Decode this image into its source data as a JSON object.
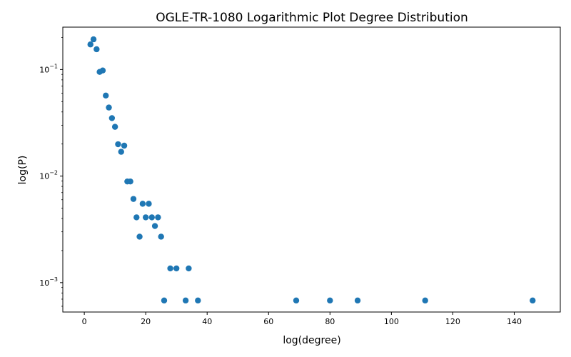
{
  "chart_data": {
    "type": "scatter",
    "title": "OGLE-TR-1080 Logarithmic Plot Degree Distribution",
    "xlabel": "log(degree)",
    "ylabel": "log(P)",
    "xlim": [
      -7,
      155
    ],
    "ylim": [
      0.00053,
      0.25
    ],
    "yscale": "log",
    "grid": false,
    "color": "#1f77b4",
    "x_ticks": [
      0,
      20,
      40,
      60,
      80,
      100,
      120,
      140
    ],
    "x_tick_labels": [
      "0",
      "20",
      "40",
      "60",
      "80",
      "100",
      "120",
      "140"
    ],
    "y_ticks": [
      0.001,
      0.01,
      0.1
    ],
    "y_tick_labels": [
      {
        "base": "10",
        "exp": "−3"
      },
      {
        "base": "10",
        "exp": "−2"
      },
      {
        "base": "10",
        "exp": "−1"
      }
    ],
    "points": [
      {
        "x": 2,
        "y": 0.172
      },
      {
        "x": 3,
        "y": 0.192
      },
      {
        "x": 4,
        "y": 0.155
      },
      {
        "x": 5,
        "y": 0.095
      },
      {
        "x": 6,
        "y": 0.098
      },
      {
        "x": 7,
        "y": 0.057
      },
      {
        "x": 8,
        "y": 0.044
      },
      {
        "x": 9,
        "y": 0.035
      },
      {
        "x": 10,
        "y": 0.029
      },
      {
        "x": 11,
        "y": 0.0199
      },
      {
        "x": 12,
        "y": 0.0169
      },
      {
        "x": 13,
        "y": 0.0193
      },
      {
        "x": 14,
        "y": 0.0089
      },
      {
        "x": 15,
        "y": 0.0089
      },
      {
        "x": 16,
        "y": 0.0061
      },
      {
        "x": 17,
        "y": 0.0041
      },
      {
        "x": 18,
        "y": 0.0027
      },
      {
        "x": 19,
        "y": 0.0055
      },
      {
        "x": 20,
        "y": 0.0041
      },
      {
        "x": 21,
        "y": 0.0055
      },
      {
        "x": 22,
        "y": 0.0041
      },
      {
        "x": 23,
        "y": 0.0034
      },
      {
        "x": 24,
        "y": 0.0041
      },
      {
        "x": 25,
        "y": 0.0027
      },
      {
        "x": 26,
        "y": 0.00068
      },
      {
        "x": 28,
        "y": 0.00136
      },
      {
        "x": 30,
        "y": 0.00136
      },
      {
        "x": 33,
        "y": 0.00068
      },
      {
        "x": 34,
        "y": 0.00136
      },
      {
        "x": 37,
        "y": 0.00068
      },
      {
        "x": 69,
        "y": 0.00068
      },
      {
        "x": 80,
        "y": 0.00068
      },
      {
        "x": 89,
        "y": 0.00068
      },
      {
        "x": 111,
        "y": 0.00068
      },
      {
        "x": 146,
        "y": 0.00068
      }
    ]
  }
}
